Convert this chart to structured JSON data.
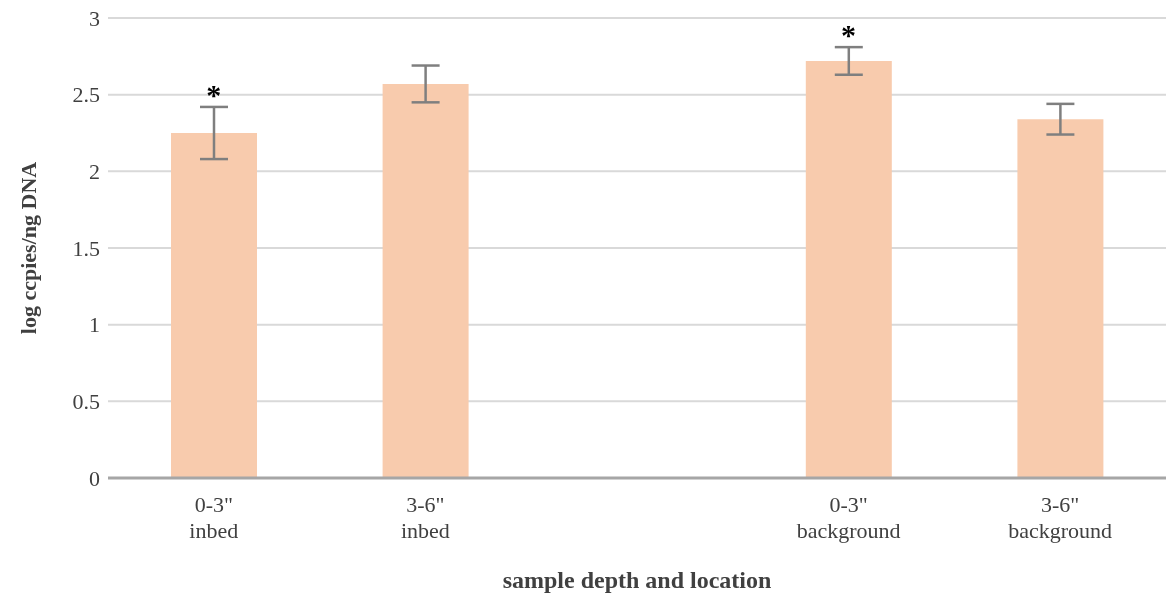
{
  "chart_data": {
    "type": "bar",
    "xlabel": "sample depth and location",
    "ylabel": "log ccpies/ng DNA",
    "categories": [
      "0-3\"\ninbed",
      "3-6\"\ninbed",
      null,
      "0-3\"\nbackground",
      "3-6\"\nbackground"
    ],
    "values": [
      2.25,
      2.57,
      null,
      2.72,
      2.34
    ],
    "errors": [
      0.17,
      0.12,
      null,
      0.09,
      0.1
    ],
    "color": "#f8cbad",
    "ylim": [
      0,
      3
    ],
    "yticks": [
      0,
      0.5,
      1,
      1.5,
      2,
      2.5,
      3
    ],
    "grid": "y",
    "annotations": [
      {
        "text": "*",
        "x": "0-3\"\ninbed",
        "y": 2.42
      },
      {
        "text": "*",
        "x": "0-3\"\nbackground",
        "y": 2.81
      }
    ]
  }
}
